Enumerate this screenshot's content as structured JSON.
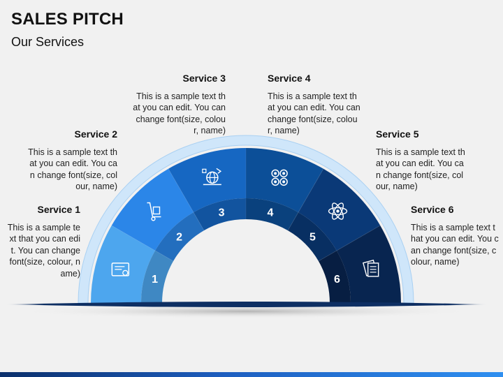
{
  "header": {
    "title": "SALES PITCH",
    "subtitle": "Our Services"
  },
  "services": [
    {
      "number": "1",
      "title": "Service 1",
      "text": "This is a sample text that you can edit. You can change font(size, colour, name)",
      "icon": "certificate-icon",
      "color": "#4da6ee"
    },
    {
      "number": "2",
      "title": "Service 2",
      "text": "This is a sample text that you can edit. You can change font(size, colour, name)",
      "icon": "hand-truck-icon",
      "color": "#2b86e8"
    },
    {
      "number": "3",
      "title": "Service 3",
      "text": "This is a sample text that you can edit. You can change font(size, colour, name)",
      "icon": "global-logistics-icon",
      "color": "#1667c2"
    },
    {
      "number": "4",
      "title": "Service 4",
      "text": "This is a sample text that you can edit. You can change font(size, colour, name)",
      "icon": "connected-circles-icon",
      "color": "#0c4f98"
    },
    {
      "number": "5",
      "title": "Service 5",
      "text": "This is a sample text that you can edit. You can change font(size, colour, name)",
      "icon": "atom-icon",
      "color": "#0a3977"
    },
    {
      "number": "6",
      "title": "Service 6",
      "text": "This is a sample text that you can edit. You can change font(size, colour, name)",
      "icon": "documents-icon",
      "color": "#082550"
    }
  ]
}
